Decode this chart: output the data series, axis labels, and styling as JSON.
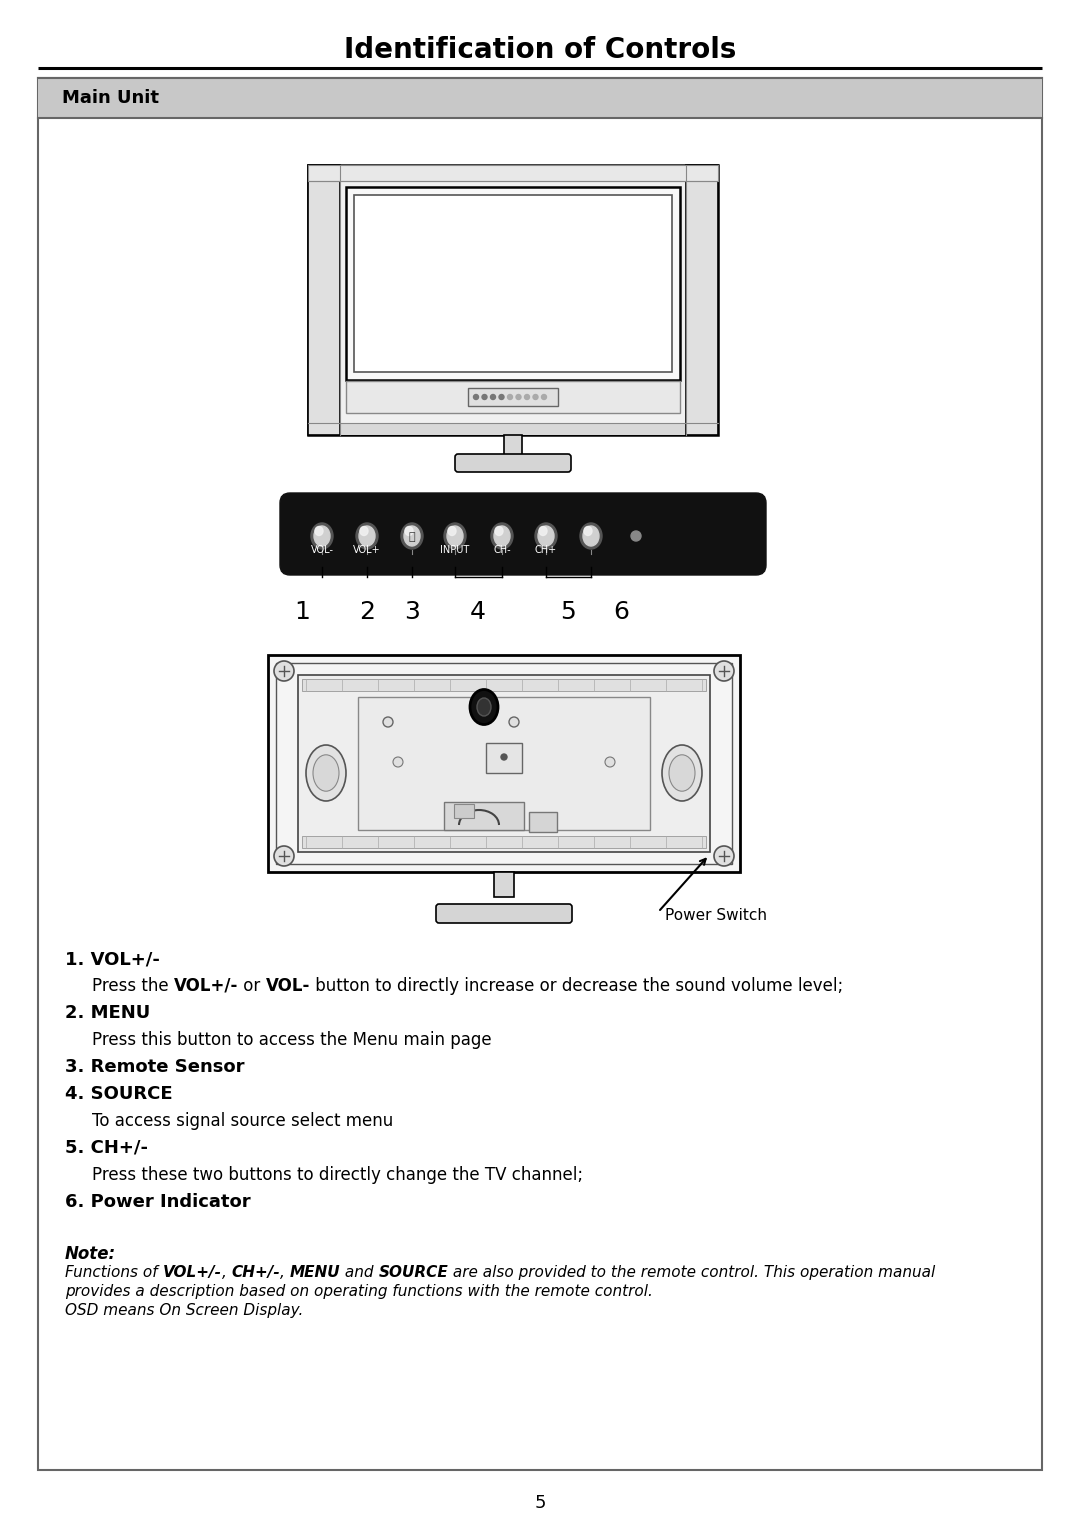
{
  "title": "Identification of Controls",
  "section_title": "Main Unit",
  "page_number": "5",
  "bg_color": "#ffffff",
  "header_bg": "#c8c8c8",
  "button_labels": [
    "VOL-",
    "VOL+",
    "⏻",
    "INPUT",
    "CH-",
    "CH+"
  ],
  "number_labels": [
    "1",
    "2",
    "3",
    "4",
    "5",
    "6"
  ],
  "power_switch_label": "Power Switch",
  "note_title": "Note:",
  "note_line2": "OSD means On Screen Display.",
  "items": [
    {
      "bold": "1. VOL+/-",
      "indent": false
    },
    {
      "plain_prefix": "Press the ",
      "bold_parts": [
        "VOL+/-",
        "VOL-"
      ],
      "plain_parts": [
        " or ",
        " button to directly increase or decrease the sound volume level;"
      ],
      "indent": true
    },
    {
      "bold": "2. MENU",
      "indent": false
    },
    {
      "plain": "Press this button to access the Menu main page",
      "indent": true
    },
    {
      "bold": "3. Remote Sensor",
      "indent": false
    },
    {
      "bold": "4. SOURCE",
      "indent": false
    },
    {
      "plain": "To access signal source select menu",
      "indent": true
    },
    {
      "bold": "5. CH+/-",
      "indent": false
    },
    {
      "plain": "Press these two buttons to directly change the TV channel;",
      "indent": true
    },
    {
      "bold": "6. Power Indicator",
      "indent": false
    }
  ]
}
